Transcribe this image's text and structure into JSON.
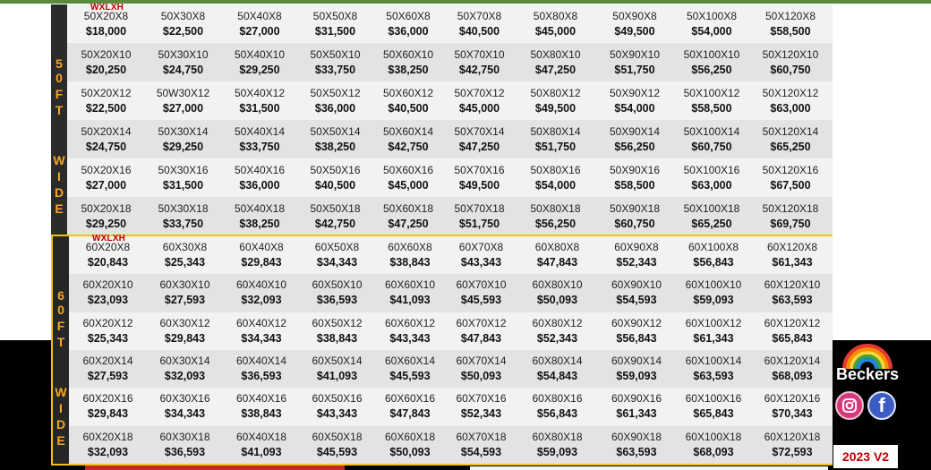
{
  "sections": [
    {
      "sidebar_letters": [
        "5",
        "0",
        "F",
        "T",
        "W",
        "I",
        "D",
        "E"
      ],
      "tag": "WXLXH",
      "rows": [
        [
          [
            "50X20X8",
            "$18,000"
          ],
          [
            "50X30X8",
            "$22,500"
          ],
          [
            "50X40X8",
            "$27,000"
          ],
          [
            "50X50X8",
            "$31,500"
          ],
          [
            "50X60X8",
            "$36,000"
          ],
          [
            "50X70X8",
            "$40,500"
          ],
          [
            "50X80X8",
            "$45,000"
          ],
          [
            "50X90X8",
            "$49,500"
          ],
          [
            "50X100X8",
            "$54,000"
          ],
          [
            "50X120X8",
            "$58,500"
          ]
        ],
        [
          [
            "50X20X10",
            "$20,250"
          ],
          [
            "50X30X10",
            "$24,750"
          ],
          [
            "50X40X10",
            "$29,250"
          ],
          [
            "50X50X10",
            "$33,750"
          ],
          [
            "50X60X10",
            "$38,250"
          ],
          [
            "50X70X10",
            "$42,750"
          ],
          [
            "50X80X10",
            "$47,250"
          ],
          [
            "50X90X10",
            "$51,750"
          ],
          [
            "50X100X10",
            "$56,250"
          ],
          [
            "50X120X10",
            "$60,750"
          ]
        ],
        [
          [
            "50X20X12",
            "$22,500"
          ],
          [
            "50W30X12",
            "$27,000"
          ],
          [
            "50X40X12",
            "$31,500"
          ],
          [
            "50X50X12",
            "$36,000"
          ],
          [
            "50X60X12",
            "$40,500"
          ],
          [
            "50X70X12",
            "$45,000"
          ],
          [
            "50X80X12",
            "$49,500"
          ],
          [
            "50X90X12",
            "$54,000"
          ],
          [
            "50X100X12",
            "$58,500"
          ],
          [
            "50X120X12",
            "$63,000"
          ]
        ],
        [
          [
            "50X20X14",
            "$24,750"
          ],
          [
            "50X30X14",
            "$29,250"
          ],
          [
            "50X40X14",
            "$33,750"
          ],
          [
            "50X50X14",
            "$38,250"
          ],
          [
            "50X60X14",
            "$42,750"
          ],
          [
            "50X70X14",
            "$47,250"
          ],
          [
            "50X80X14",
            "$51,750"
          ],
          [
            "50X90X14",
            "$56,250"
          ],
          [
            "50X100X14",
            "$60,750"
          ],
          [
            "50X120X14",
            "$65,250"
          ]
        ],
        [
          [
            "50X20X16",
            "$27,000"
          ],
          [
            "50X30X16",
            "$31,500"
          ],
          [
            "50X40X16",
            "$36,000"
          ],
          [
            "50X50X16",
            "$40,500"
          ],
          [
            "50X60X16",
            "$45,000"
          ],
          [
            "50X70X16",
            "$49,500"
          ],
          [
            "50X80X16",
            "$54,000"
          ],
          [
            "50X90X16",
            "$58,500"
          ],
          [
            "50X100X16",
            "$63,000"
          ],
          [
            "50X120X16",
            "$67,500"
          ]
        ],
        [
          [
            "50X20X18",
            "$29,250"
          ],
          [
            "50X30X18",
            "$33,750"
          ],
          [
            "50X40X18",
            "$38,250"
          ],
          [
            "50X50X18",
            "$42,750"
          ],
          [
            "50X60X18",
            "$47,250"
          ],
          [
            "50X70X18",
            "$51,750"
          ],
          [
            "50X80X18",
            "$56,250"
          ],
          [
            "50X90X18",
            "$60,750"
          ],
          [
            "50X100X18",
            "$65,250"
          ],
          [
            "50X120X18",
            "$69,750"
          ]
        ]
      ]
    },
    {
      "sidebar_letters": [
        "6",
        "0",
        "F",
        "T",
        "W",
        "I",
        "D",
        "E"
      ],
      "tag": "WXLXH",
      "rows": [
        [
          [
            "60X20X8",
            "$20,843"
          ],
          [
            "60X30X8",
            "$25,343"
          ],
          [
            "60X40X8",
            "$29,843"
          ],
          [
            "60X50X8",
            "$34,343"
          ],
          [
            "60X60X8",
            "$38,843"
          ],
          [
            "60X70X8",
            "$43,343"
          ],
          [
            "60X80X8",
            "$47,843"
          ],
          [
            "60X90X8",
            "$52,343"
          ],
          [
            "60X100X8",
            "$56,843"
          ],
          [
            "60X120X8",
            "$61,343"
          ]
        ],
        [
          [
            "60X20X10",
            "$23,093"
          ],
          [
            "60X30X10",
            "$27,593"
          ],
          [
            "60X40X10",
            "$32,093"
          ],
          [
            "60X50X10",
            "$36,593"
          ],
          [
            "60X60X10",
            "$41,093"
          ],
          [
            "60X70X10",
            "$45,593"
          ],
          [
            "60X80X10",
            "$50,093"
          ],
          [
            "60X90X10",
            "$54,593"
          ],
          [
            "60X100X10",
            "$59,093"
          ],
          [
            "60X120X10",
            "$63,593"
          ]
        ],
        [
          [
            "60X20X12",
            "$25,343"
          ],
          [
            "60X30X12",
            "$29,843"
          ],
          [
            "60X40X12",
            "$34,343"
          ],
          [
            "60X50X12",
            "$38,843"
          ],
          [
            "60X60X12",
            "$43,343"
          ],
          [
            "60X70X12",
            "$47,843"
          ],
          [
            "60X80X12",
            "$52,343"
          ],
          [
            "60X90X12",
            "$56,843"
          ],
          [
            "60X100X12",
            "$61,343"
          ],
          [
            "60X120X12",
            "$65,843"
          ]
        ],
        [
          [
            "60X20X14",
            "$27,593"
          ],
          [
            "60X30X14",
            "$32,093"
          ],
          [
            "60X40X14",
            "$36,593"
          ],
          [
            "60X50X14",
            "$41,093"
          ],
          [
            "60X60X14",
            "$45,593"
          ],
          [
            "60X70X14",
            "$50,093"
          ],
          [
            "60X80X14",
            "$54,843"
          ],
          [
            "60X90X14",
            "$59,093"
          ],
          [
            "60X100X14",
            "$63,593"
          ],
          [
            "60X120X14",
            "$68,093"
          ]
        ],
        [
          [
            "60X20X16",
            "$29,843"
          ],
          [
            "60X30X16",
            "$34,343"
          ],
          [
            "60X40X16",
            "$38,843"
          ],
          [
            "60X50X16",
            "$43,343"
          ],
          [
            "60X60X16",
            "$47,843"
          ],
          [
            "60X70X16",
            "$52,343"
          ],
          [
            "60X80X16",
            "$56,843"
          ],
          [
            "60X90X16",
            "$61,343"
          ],
          [
            "60X100X16",
            "$65,843"
          ],
          [
            "60X120X16",
            "$70,343"
          ]
        ],
        [
          [
            "60X20X18",
            "$32,093"
          ],
          [
            "60X30X18",
            "$36,593"
          ],
          [
            "60X40X18",
            "$41,093"
          ],
          [
            "60X50X18",
            "$45,593"
          ],
          [
            "60X60X18",
            "$50,093"
          ],
          [
            "60X70X18",
            "$54,593"
          ],
          [
            "60X80X18",
            "$59,093"
          ],
          [
            "60X90X18",
            "$63,593"
          ],
          [
            "60X100X18",
            "$68,093"
          ],
          [
            "60X120X18",
            "$72,593"
          ]
        ]
      ]
    }
  ],
  "logo": {
    "brand": "Beckers"
  },
  "social": {
    "instagram_icon": "instagram-icon",
    "facebook_icon": "facebook-icon",
    "facebook_glyph": "f"
  },
  "version": "2023 V2",
  "colors": {
    "accent": "#f5a623",
    "sidebar": "#2b2b2b",
    "border_60": "#f2c21a",
    "red": "#c00000"
  }
}
